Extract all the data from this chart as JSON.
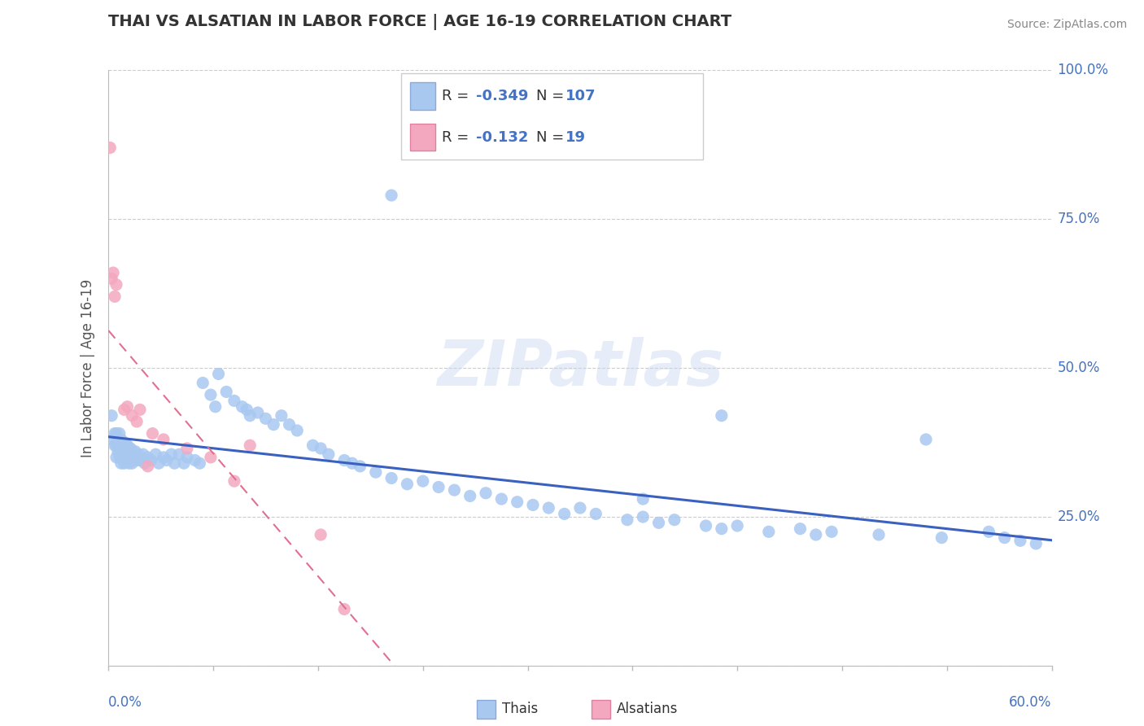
{
  "title": "THAI VS ALSATIAN IN LABOR FORCE | AGE 16-19 CORRELATION CHART",
  "source": "Source: ZipAtlas.com",
  "ylabel": "In Labor Force | Age 16-19",
  "blue_color": "#A8C8F0",
  "pink_color": "#F4A8C0",
  "blue_line_color": "#3A60C0",
  "pink_line_color": "#E07090",
  "title_color": "#333333",
  "source_color": "#888888",
  "axis_label_color": "#4472C4",
  "R_thai": -0.349,
  "N_thai": 107,
  "R_alsatian": -0.132,
  "N_alsatian": 19,
  "xmin": 0.0,
  "xmax": 0.6,
  "ymin": 0.0,
  "ymax": 1.0,
  "thai_scatter_x": [
    0.002,
    0.003,
    0.004,
    0.004,
    0.005,
    0.005,
    0.005,
    0.006,
    0.006,
    0.007,
    0.007,
    0.007,
    0.008,
    0.008,
    0.008,
    0.009,
    0.009,
    0.01,
    0.01,
    0.01,
    0.011,
    0.011,
    0.012,
    0.012,
    0.013,
    0.013,
    0.014,
    0.014,
    0.015,
    0.015,
    0.016,
    0.017,
    0.018,
    0.019,
    0.02,
    0.022,
    0.023,
    0.025,
    0.027,
    0.03,
    0.032,
    0.035,
    0.037,
    0.04,
    0.042,
    0.045,
    0.048,
    0.05,
    0.055,
    0.058,
    0.06,
    0.065,
    0.068,
    0.07,
    0.075,
    0.08,
    0.085,
    0.088,
    0.09,
    0.095,
    0.1,
    0.105,
    0.11,
    0.115,
    0.12,
    0.13,
    0.135,
    0.14,
    0.15,
    0.155,
    0.16,
    0.17,
    0.18,
    0.19,
    0.2,
    0.21,
    0.22,
    0.23,
    0.24,
    0.25,
    0.26,
    0.27,
    0.28,
    0.29,
    0.3,
    0.31,
    0.33,
    0.34,
    0.35,
    0.36,
    0.38,
    0.39,
    0.4,
    0.42,
    0.44,
    0.45,
    0.46,
    0.49,
    0.53,
    0.56,
    0.57,
    0.58,
    0.59,
    0.34,
    0.39,
    0.52,
    0.18
  ],
  "thai_scatter_y": [
    0.42,
    0.38,
    0.37,
    0.39,
    0.35,
    0.37,
    0.39,
    0.36,
    0.38,
    0.35,
    0.37,
    0.39,
    0.34,
    0.36,
    0.38,
    0.355,
    0.375,
    0.34,
    0.36,
    0.375,
    0.345,
    0.37,
    0.35,
    0.37,
    0.34,
    0.365,
    0.345,
    0.365,
    0.34,
    0.36,
    0.35,
    0.36,
    0.345,
    0.355,
    0.345,
    0.355,
    0.34,
    0.35,
    0.345,
    0.355,
    0.34,
    0.35,
    0.345,
    0.355,
    0.34,
    0.355,
    0.34,
    0.35,
    0.345,
    0.34,
    0.475,
    0.455,
    0.435,
    0.49,
    0.46,
    0.445,
    0.435,
    0.43,
    0.42,
    0.425,
    0.415,
    0.405,
    0.42,
    0.405,
    0.395,
    0.37,
    0.365,
    0.355,
    0.345,
    0.34,
    0.335,
    0.325,
    0.315,
    0.305,
    0.31,
    0.3,
    0.295,
    0.285,
    0.29,
    0.28,
    0.275,
    0.27,
    0.265,
    0.255,
    0.265,
    0.255,
    0.245,
    0.25,
    0.24,
    0.245,
    0.235,
    0.23,
    0.235,
    0.225,
    0.23,
    0.22,
    0.225,
    0.22,
    0.215,
    0.225,
    0.215,
    0.21,
    0.205,
    0.28,
    0.42,
    0.38,
    0.79
  ],
  "alsatian_scatter_x": [
    0.001,
    0.002,
    0.003,
    0.004,
    0.005,
    0.01,
    0.012,
    0.015,
    0.018,
    0.02,
    0.025,
    0.028,
    0.035,
    0.05,
    0.065,
    0.08,
    0.09,
    0.135,
    0.15
  ],
  "alsatian_scatter_y": [
    0.87,
    0.65,
    0.66,
    0.62,
    0.64,
    0.43,
    0.435,
    0.42,
    0.41,
    0.43,
    0.335,
    0.39,
    0.38,
    0.365,
    0.35,
    0.31,
    0.37,
    0.22,
    0.095
  ]
}
